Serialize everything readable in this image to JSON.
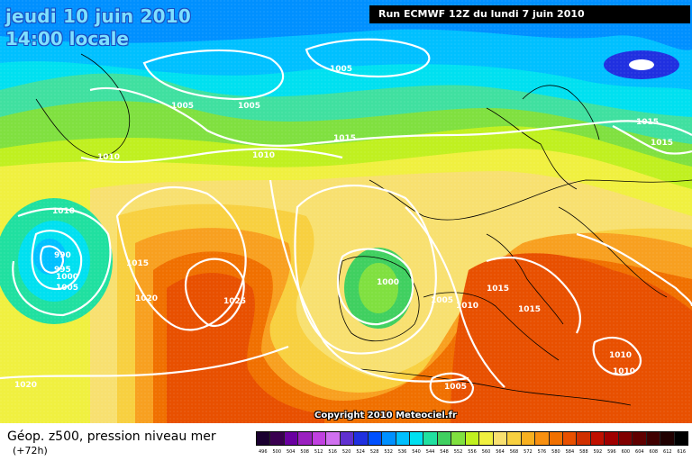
{
  "header": {
    "date_line": "jeudi 10 juin 2010",
    "time_line": "14:00 locale",
    "run_info": "Run ECMWF 12Z du lundi 7 juin 2010"
  },
  "copyright": "Copyright 2010 Meteociel.fr",
  "legend": {
    "title": "Géop. z500, pression niveau mer",
    "subtitle": "(+72h)",
    "scale_values": [
      "496",
      "500",
      "504",
      "508",
      "512",
      "516",
      "520",
      "524",
      "528",
      "532",
      "536",
      "540",
      "544",
      "548",
      "552",
      "556",
      "560",
      "564",
      "568",
      "572",
      "576",
      "580",
      "584",
      "588",
      "592",
      "596",
      "600",
      "604",
      "608",
      "612",
      "616"
    ],
    "scale_colors": [
      "#1a0030",
      "#3a0050",
      "#6a00a0",
      "#9a20c0",
      "#c040e0",
      "#d070f0",
      "#6030d0",
      "#2030e0",
      "#0050ff",
      "#0090ff",
      "#00c0ff",
      "#00e0f0",
      "#20e0a0",
      "#40d060",
      "#80e040",
      "#c0f020",
      "#f0f040",
      "#f8e070",
      "#f8d040",
      "#f8b020",
      "#f89010",
      "#f07000",
      "#e85000",
      "#d03000",
      "#c01000",
      "#a00000",
      "#800000",
      "#600000",
      "#400000",
      "#200000",
      "#000000"
    ]
  },
  "map": {
    "pressure_labels": [
      "1005",
      "1005",
      "1005",
      "1015",
      "1010",
      "1010",
      "1015",
      "1015",
      "1010",
      "990",
      "995",
      "1000",
      "1005",
      "1015",
      "1020",
      "1025",
      "1000",
      "1005",
      "1010",
      "1015",
      "1015",
      "1010",
      "1010",
      "1020",
      "1005"
    ]
  }
}
